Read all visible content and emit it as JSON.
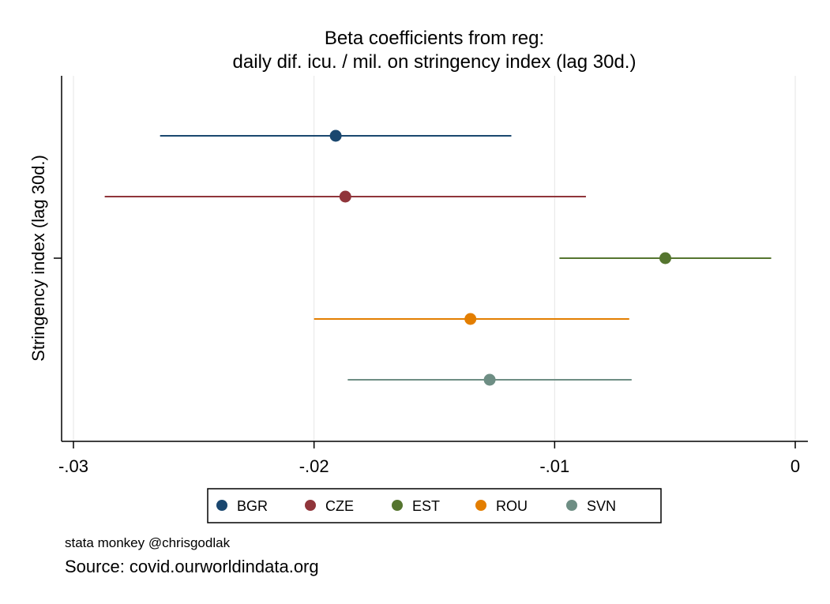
{
  "chart_data": {
    "type": "scatter",
    "title": "Beta coefficients from reg:",
    "subtitle": "daily dif. icu. / mil. on stringency index (lag 30d.)",
    "ylabel": "Stringency index (lag 30d.)",
    "xlabel": "",
    "xlim": [
      -0.0305,
      0.0005
    ],
    "xticks": [
      -0.03,
      -0.02,
      -0.01,
      0
    ],
    "xtick_labels": [
      ".03",
      ".02",
      ".01",
      "0"
    ],
    "grid": "vertical",
    "legend_position": "bottom",
    "series": [
      {
        "name": "BGR",
        "color": "#1a476f",
        "coef": -0.0191,
        "ci": [
          -0.0264,
          -0.0118
        ]
      },
      {
        "name": "CZE",
        "color": "#90353b",
        "coef": -0.0187,
        "ci": [
          -0.0287,
          -0.0087
        ]
      },
      {
        "name": "EST",
        "color": "#55752f",
        "coef": -0.0054,
        "ci": [
          -0.0098,
          -0.001
        ]
      },
      {
        "name": "ROU",
        "color": "#e37e00",
        "coef": -0.0135,
        "ci": [
          -0.02,
          -0.0069
        ]
      },
      {
        "name": "SVN",
        "color": "#6e8e84",
        "coef": -0.0127,
        "ci": [
          -0.0186,
          -0.0068
        ]
      }
    ]
  },
  "notes": {
    "credit": "stata monkey @chrisgodlak",
    "source": "Source: covid.ourworldindata.org"
  }
}
